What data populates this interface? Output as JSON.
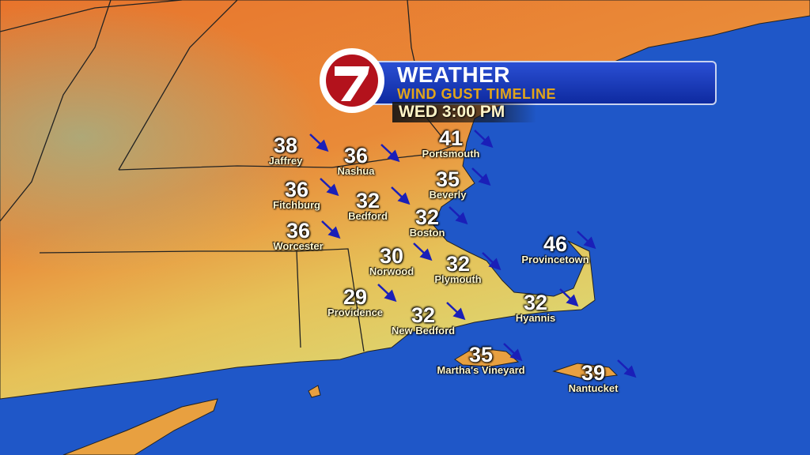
{
  "header": {
    "logo_text": "7",
    "title": "WEATHER",
    "subtitle": "WIND GUST TIMELINE",
    "time": "WED 3:00 PM"
  },
  "colors": {
    "ocean": "#1f57c8",
    "land_high": "#e8742c",
    "land_mid": "#e9b54a",
    "land_low": "#dfe07a",
    "arrow": "#1a1fb8",
    "banner": "#1b3fc4",
    "subtitle": "#e2a51a",
    "logo_red": "#b3121c"
  },
  "wind_direction": "northwest",
  "cities": [
    {
      "name": "Jaffrey",
      "gust": "38"
    },
    {
      "name": "Nashua",
      "gust": "36"
    },
    {
      "name": "Portsmouth",
      "gust": "41"
    },
    {
      "name": "Beverly",
      "gust": "35"
    },
    {
      "name": "Fitchburg",
      "gust": "36"
    },
    {
      "name": "Bedford",
      "gust": "32"
    },
    {
      "name": "Boston",
      "gust": "32"
    },
    {
      "name": "Worcester",
      "gust": "36"
    },
    {
      "name": "Norwood",
      "gust": "30"
    },
    {
      "name": "Plymouth",
      "gust": "32"
    },
    {
      "name": "Provincetown",
      "gust": "46"
    },
    {
      "name": "Providence",
      "gust": "29"
    },
    {
      "name": "Hyannis",
      "gust": "32"
    },
    {
      "name": "New Bedford",
      "gust": "32"
    },
    {
      "name": "Martha's Vineyard",
      "gust": "35"
    },
    {
      "name": "Nantucket",
      "gust": "39"
    }
  ]
}
